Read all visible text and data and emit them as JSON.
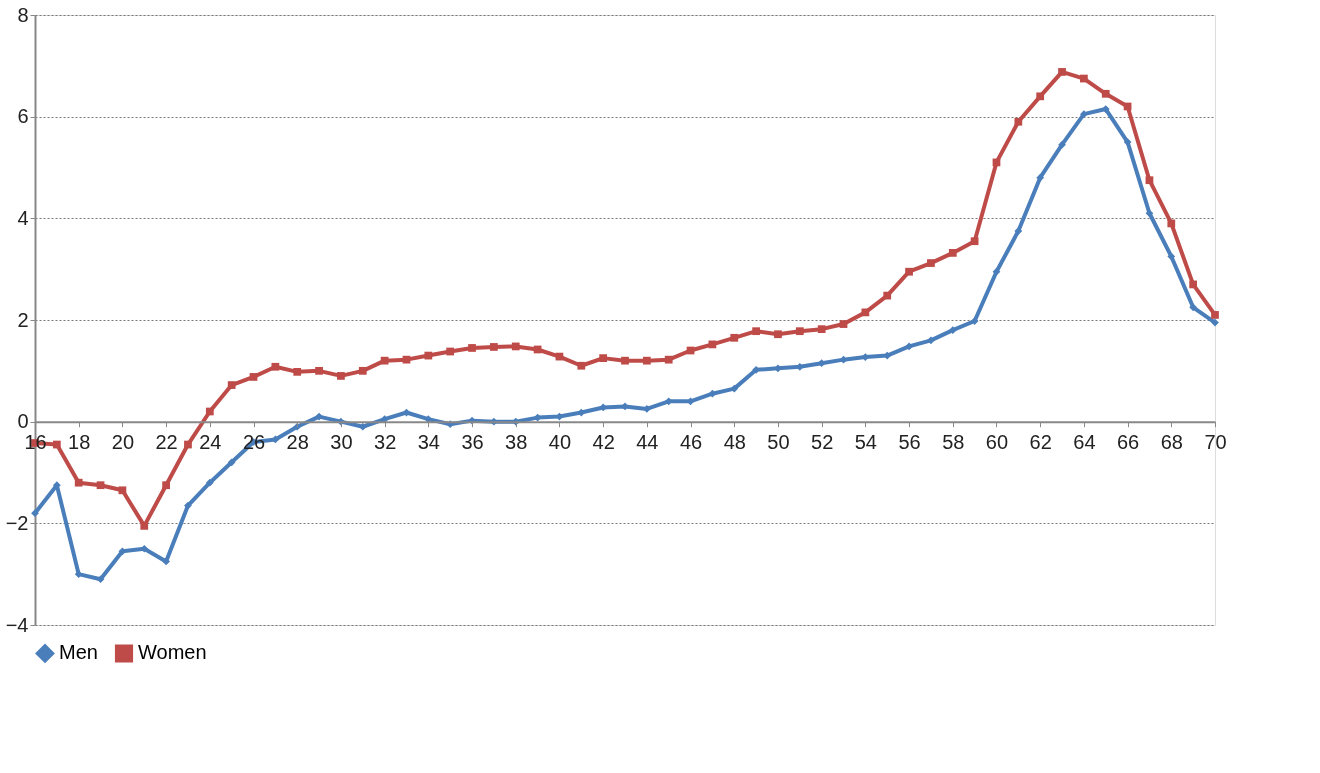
{
  "chart_data": {
    "type": "line",
    "x": [
      16,
      17,
      18,
      19,
      20,
      21,
      22,
      23,
      24,
      25,
      26,
      27,
      28,
      29,
      30,
      31,
      32,
      33,
      34,
      35,
      36,
      37,
      38,
      39,
      40,
      41,
      42,
      43,
      44,
      45,
      46,
      47,
      48,
      49,
      50,
      51,
      52,
      53,
      54,
      55,
      56,
      57,
      58,
      59,
      60,
      61,
      62,
      63,
      64,
      65,
      66,
      67,
      68,
      69,
      70
    ],
    "series": [
      {
        "name": "Men",
        "color": "#4a7ebb",
        "marker": "diamond",
        "values": [
          -1.8,
          -1.25,
          -3.0,
          -3.1,
          -2.55,
          -2.5,
          -2.75,
          -1.65,
          -1.2,
          -0.8,
          -0.4,
          -0.35,
          -0.1,
          0.1,
          0.0,
          -0.1,
          0.05,
          0.18,
          0.05,
          -0.05,
          0.02,
          0.0,
          0.0,
          0.08,
          0.1,
          0.18,
          0.28,
          0.3,
          0.25,
          0.4,
          0.4,
          0.55,
          0.65,
          1.02,
          1.05,
          1.08,
          1.15,
          1.22,
          1.27,
          1.3,
          1.48,
          1.6,
          1.8,
          1.98,
          2.95,
          3.75,
          4.8,
          5.45,
          6.05,
          6.15,
          5.5,
          4.1,
          3.25,
          2.25,
          1.95
        ]
      },
      {
        "name": "Women",
        "color": "#be4b48",
        "marker": "square",
        "values": [
          -0.42,
          -0.45,
          -1.2,
          -1.25,
          -1.35,
          -2.05,
          -1.25,
          -0.45,
          0.2,
          0.72,
          0.88,
          1.08,
          0.98,
          1.0,
          0.9,
          1.0,
          1.2,
          1.22,
          1.3,
          1.38,
          1.45,
          1.47,
          1.48,
          1.42,
          1.28,
          1.1,
          1.25,
          1.2,
          1.2,
          1.22,
          1.4,
          1.52,
          1.65,
          1.78,
          1.72,
          1.78,
          1.82,
          1.92,
          2.15,
          2.48,
          2.95,
          3.12,
          3.32,
          3.55,
          5.1,
          5.9,
          6.4,
          6.88,
          6.75,
          6.45,
          6.2,
          4.75,
          3.9,
          2.7,
          2.1
        ]
      }
    ],
    "xlim": [
      16,
      70
    ],
    "xticks": [
      16,
      18,
      20,
      22,
      24,
      26,
      28,
      30,
      32,
      34,
      36,
      38,
      40,
      42,
      44,
      46,
      48,
      50,
      52,
      54,
      56,
      58,
      60,
      62,
      64,
      66,
      68,
      70
    ],
    "ylim": [
      -4,
      8
    ],
    "yticks": [
      -4,
      -2,
      0,
      2,
      4,
      6,
      8
    ],
    "grid": "y",
    "legend": "bottom",
    "line_style": "solid"
  }
}
